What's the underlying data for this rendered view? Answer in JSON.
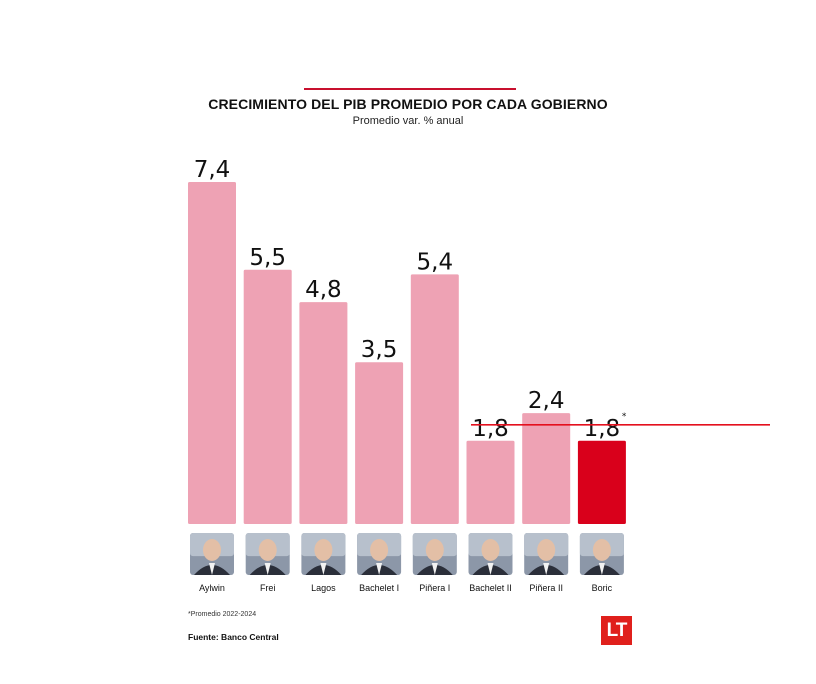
{
  "header": {
    "title": "CRECIMIENTO DEL PIB PROMEDIO POR CADA GOBIERNO",
    "subtitle": "Promedio var. % anual"
  },
  "chart_data": {
    "type": "bar",
    "title": "CRECIMIENTO DEL PIB PROMEDIO POR CADA GOBIERNO",
    "subtitle": "Promedio var. % anual",
    "categories": [
      "Aylwin",
      "Frei",
      "Lagos",
      "Bachelet I",
      "Piñera I",
      "Bachelet II",
      "Piñera II",
      "Boric"
    ],
    "values": [
      7.4,
      5.5,
      4.8,
      3.5,
      5.4,
      1.8,
      2.4,
      1.8
    ],
    "value_labels": [
      "7,4",
      "5,5",
      "4,8",
      "3,5",
      "5,4",
      "1,8",
      "2,4",
      "1,8"
    ],
    "asterisk_index": 7,
    "asterisk": "*",
    "ylim": [
      0,
      7.4
    ],
    "xlabel": "",
    "ylabel": "",
    "reference_line_value": 1.8,
    "colors": {
      "bar": "#eea2b4",
      "highlight": "#d9001b",
      "reference_line": "#e4101e"
    },
    "highlight_index": 7
  },
  "portraits": [
    "person-portrait",
    "person-portrait",
    "person-portrait",
    "person-portrait",
    "person-portrait",
    "person-portrait",
    "person-portrait",
    "person-portrait"
  ],
  "footer": {
    "footnote": "*Promedio 2022-2024",
    "source": "Fuente: Banco Central",
    "logo": "LT",
    "logo_color": "#e0201c"
  }
}
